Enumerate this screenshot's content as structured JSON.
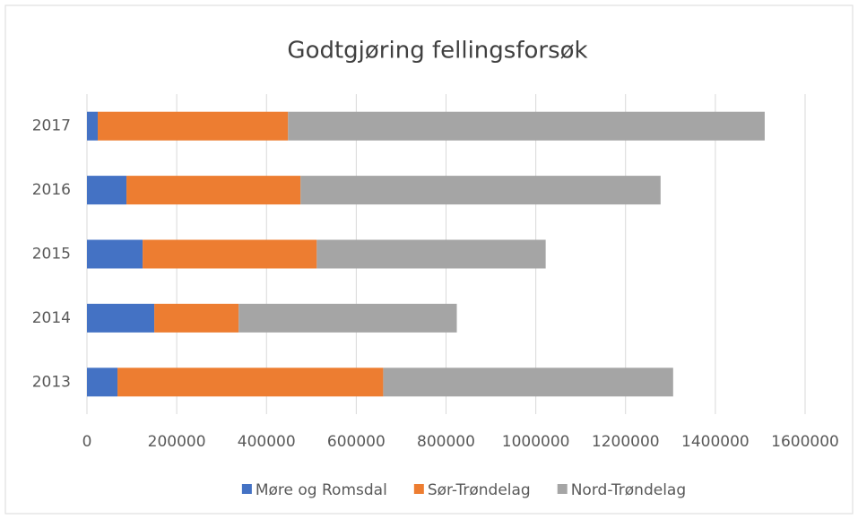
{
  "chart_data": {
    "type": "stacked_barh",
    "title": "Godtgjøring fellingsforsøk",
    "categories": [
      "2013",
      "2014",
      "2015",
      "2016",
      "2017"
    ],
    "series": [
      {
        "name": "Møre og Romsdal",
        "color": "#4472c4",
        "values": [
          68000,
          150000,
          124000,
          88000,
          24000
        ]
      },
      {
        "name": "Sør-Trøndelag",
        "color": "#ed7d31",
        "values": [
          592000,
          188000,
          388000,
          388000,
          424000
        ]
      },
      {
        "name": "Nord-Trøndelag",
        "color": "#a5a5a5",
        "values": [
          646000,
          486000,
          510000,
          802000,
          1062000
        ]
      }
    ],
    "xlim": [
      0,
      1600000
    ],
    "xticks": [
      0,
      200000,
      400000,
      600000,
      800000,
      1000000,
      1200000,
      1400000,
      1600000
    ],
    "grid": true,
    "legend": "bottom"
  }
}
